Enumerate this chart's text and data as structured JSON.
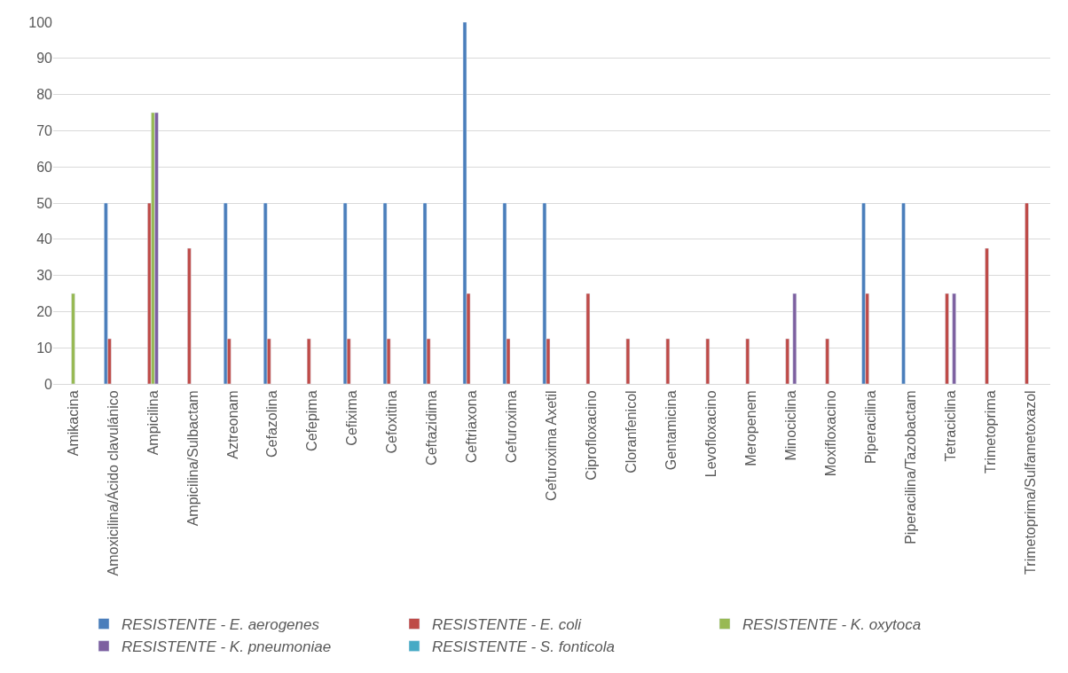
{
  "chart_data": {
    "type": "bar",
    "categories": [
      "Amikacina",
      "Amoxicilina/Ácido clavulánico",
      "Ampicilina",
      "Ampicilina/Sulbactam",
      "Aztreonam",
      "Cefazolina",
      "Cefepima",
      "Cefixima",
      "Cefoxitina",
      "Ceftazidima",
      "Ceftriaxona",
      "Cefuroxima",
      "Cefuroxima Axetil",
      "Ciprofloxacino",
      "Cloranfenicol",
      "Gentamicina",
      "Levofloxacino",
      "Meropenem",
      "Minociclina",
      "Moxifloxacino",
      "Piperacilina",
      "Piperacilina/Tazobactam",
      "Tetraciclina",
      "Trimetoprima",
      "Trimetoprima/Sulfametoxazol"
    ],
    "series": [
      {
        "name": "RESISTENTE - E. aerogenes",
        "color": "#4a7ebb",
        "values": [
          null,
          50,
          null,
          null,
          50,
          50,
          null,
          50,
          50,
          50,
          100,
          50,
          50,
          null,
          null,
          null,
          null,
          null,
          null,
          null,
          50,
          50,
          null,
          null,
          null
        ]
      },
      {
        "name": "RESISTENTE - E. coli",
        "color": "#be4b48",
        "values": [
          null,
          12.5,
          50,
          37.5,
          12.5,
          12.5,
          12.5,
          12.5,
          12.5,
          12.5,
          25,
          12.5,
          12.5,
          25,
          12.5,
          12.5,
          12.5,
          12.5,
          12.5,
          12.5,
          25,
          null,
          25,
          37.5,
          50
        ]
      },
      {
        "name": "RESISTENTE - K. oxytoca",
        "color": "#98b954",
        "values": [
          25,
          null,
          75,
          null,
          null,
          null,
          null,
          null,
          null,
          null,
          null,
          null,
          null,
          null,
          null,
          null,
          null,
          null,
          null,
          null,
          null,
          null,
          null,
          null,
          null
        ]
      },
      {
        "name": "RESISTENTE - K. pneumoniae",
        "color": "#7d60a0",
        "values": [
          null,
          null,
          75,
          null,
          null,
          null,
          null,
          null,
          null,
          null,
          null,
          null,
          null,
          null,
          null,
          null,
          null,
          null,
          25,
          null,
          null,
          null,
          25,
          null,
          null
        ]
      },
      {
        "name": "RESISTENTE - S. fonticola",
        "color": "#46aac5",
        "values": [
          null,
          null,
          null,
          null,
          null,
          null,
          null,
          null,
          null,
          null,
          null,
          null,
          null,
          null,
          null,
          null,
          null,
          null,
          null,
          null,
          null,
          null,
          null,
          null,
          null
        ]
      }
    ],
    "ylim": [
      0,
      100
    ],
    "yticks": [
      0,
      10,
      20,
      30,
      40,
      50,
      60,
      70,
      80,
      90,
      100
    ],
    "grid": "y",
    "legend": "bottom"
  }
}
